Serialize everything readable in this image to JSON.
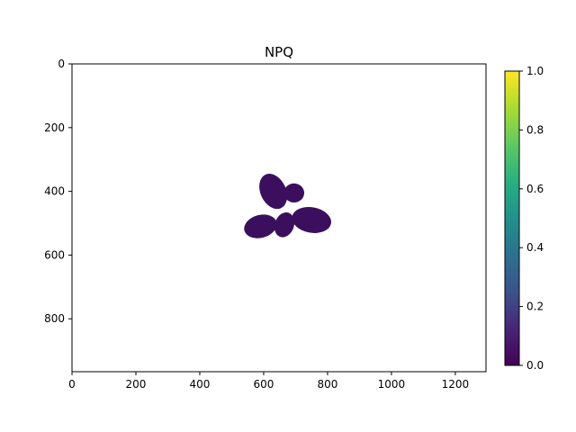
{
  "chart_data": {
    "type": "heatmap",
    "title": "NPQ",
    "xlabel": "",
    "ylabel": "",
    "xlim": [
      0,
      1296
    ],
    "ylim": [
      966,
      0
    ],
    "x_ticks": [
      0,
      200,
      400,
      600,
      800,
      1000,
      1200
    ],
    "y_ticks": [
      0,
      200,
      400,
      600,
      800
    ],
    "colormap": "viridis",
    "colorbar": {
      "range": [
        0,
        1
      ],
      "ticks": [
        "0.0",
        "0.2",
        "0.4",
        "0.6",
        "0.8",
        "1.0"
      ]
    },
    "grid": false,
    "background_color": "#ffffff",
    "plant": {
      "description_value": 0.03,
      "color": "#3b0f5e",
      "leaves": [
        {
          "cx": 630,
          "cy": 400,
          "rx": 40,
          "ry": 58,
          "rot": -25
        },
        {
          "cx": 695,
          "cy": 405,
          "rx": 32,
          "ry": 30,
          "rot": 0
        },
        {
          "cx": 590,
          "cy": 510,
          "rx": 52,
          "ry": 36,
          "rot": -15
        },
        {
          "cx": 665,
          "cy": 505,
          "rx": 30,
          "ry": 40,
          "rot": 20
        },
        {
          "cx": 750,
          "cy": 490,
          "rx": 62,
          "ry": 40,
          "rot": 10
        }
      ]
    }
  }
}
